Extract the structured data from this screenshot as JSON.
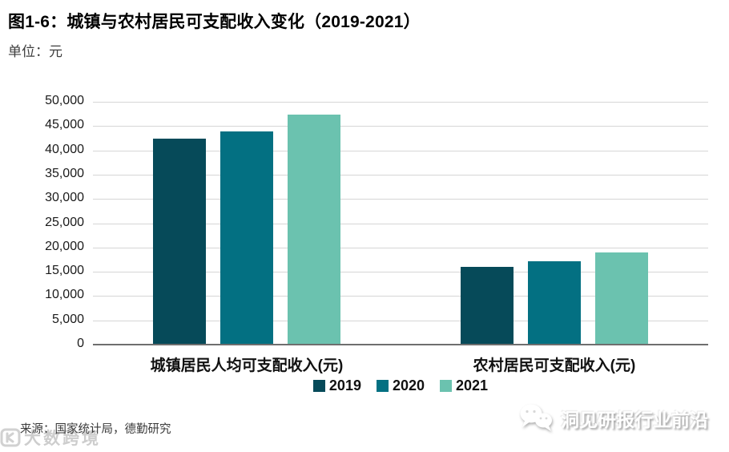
{
  "header": {
    "title": "图1-6：城镇与农村居民可支配收入变化（2019-2021）",
    "unit_label": "单位：元"
  },
  "chart_data": {
    "type": "bar",
    "title": "城镇与农村居民可支配收入变化（2019-2021）",
    "unit": "元",
    "categories": [
      "城镇居民人均可支配收入(元)",
      "农村居民可支配收入(元)"
    ],
    "series": [
      {
        "name": "2019",
        "color": "#064A59",
        "values": [
          42359,
          16021
        ]
      },
      {
        "name": "2020",
        "color": "#037082",
        "values": [
          43834,
          17131
        ]
      },
      {
        "name": "2021",
        "color": "#6BC2AF",
        "values": [
          47412,
          18931
        ]
      }
    ],
    "ylim": [
      0,
      50000
    ],
    "ytick_step": 5000,
    "yticks": [
      "0",
      "5,000",
      "10,000",
      "15,000",
      "20,000",
      "25,000",
      "30,000",
      "35,000",
      "40,000",
      "45,000",
      "50,000"
    ],
    "grid": true,
    "legend_position": "bottom",
    "grid_color": "#D6D6D6",
    "axis_color": "#6E6E6E"
  },
  "footer": {
    "source": "来源：国家统计局，德勤研究"
  },
  "watermarks": {
    "left_text": "大数跨境",
    "right_text": "洞见研报行业前沿"
  }
}
